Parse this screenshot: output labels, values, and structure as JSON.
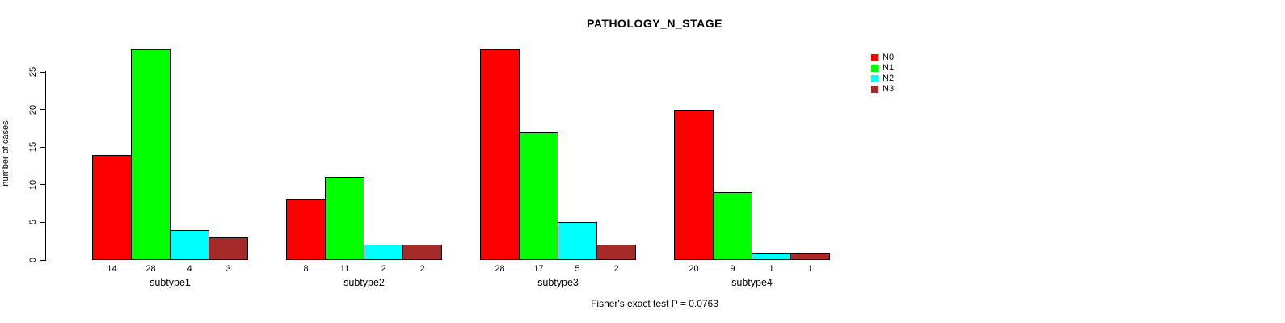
{
  "title": "PATHOLOGY_N_STAGE",
  "y_axis_label": "number of cases",
  "caption": "Fisher's exact test P = 0.0763",
  "chart_data": {
    "type": "bar",
    "grouped": true,
    "title": "PATHOLOGY_N_STAGE",
    "xlabel": "",
    "ylabel": "number of cases",
    "categories": [
      "subtype1",
      "subtype2",
      "subtype3",
      "subtype4"
    ],
    "series": [
      {
        "name": "N0",
        "color": "#ff0000",
        "values": [
          14,
          8,
          28,
          20
        ]
      },
      {
        "name": "N1",
        "color": "#00ff00",
        "values": [
          28,
          11,
          17,
          9
        ]
      },
      {
        "name": "N2",
        "color": "#00ffff",
        "values": [
          4,
          2,
          5,
          1
        ]
      },
      {
        "name": "N3",
        "color": "#a52a2a",
        "values": [
          3,
          2,
          2,
          1
        ]
      }
    ],
    "ylim": [
      0,
      28
    ],
    "yticks": [
      0,
      5,
      10,
      15,
      20,
      25
    ],
    "bar_value_labels_shown": true,
    "grid": false,
    "legend_position": "top-right",
    "annotation": "Fisher's exact test P = 0.0763"
  }
}
